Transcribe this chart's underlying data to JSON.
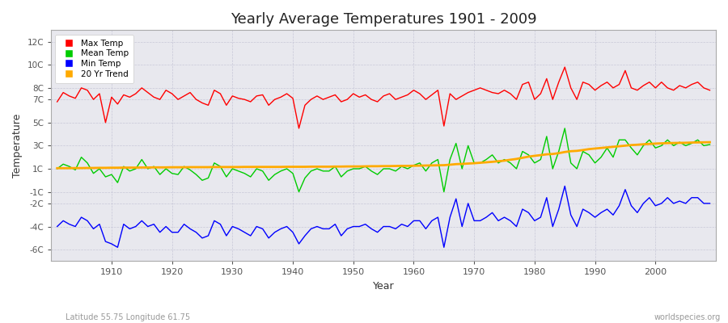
{
  "title": "Yearly Average Temperatures 1901 - 2009",
  "xlabel": "Year",
  "ylabel": "Temperature",
  "subtitle_left": "Latitude 55.75 Longitude 61.75",
  "subtitle_right": "worldspecies.org",
  "years_start": 1901,
  "years_end": 2009,
  "ytick_vals": [
    -6,
    -4,
    -2,
    -1,
    1,
    3,
    5,
    7,
    8,
    10,
    12
  ],
  "ytick_labels": [
    "-6C",
    "-4C",
    "-2C",
    "-1C",
    "1C",
    "3C",
    "5C",
    "7C",
    "8C",
    "10C",
    "12C"
  ],
  "ylim": [
    -7,
    13
  ],
  "xlim": [
    1900,
    2010
  ],
  "fig_bg": "#ffffff",
  "plot_bg": "#e8e8ee",
  "grid_color": "#c8c8d8",
  "legend_colors": [
    "#ff0000",
    "#00cc00",
    "#0000ff",
    "#ffaa00"
  ],
  "legend_labels": [
    "Max Temp",
    "Mean Temp",
    "Min Temp",
    "20 Yr Trend"
  ],
  "max_temp": [
    6.8,
    7.6,
    7.3,
    7.1,
    8.0,
    7.8,
    7.0,
    7.5,
    5.0,
    7.2,
    6.6,
    7.4,
    7.2,
    7.5,
    8.0,
    7.6,
    7.2,
    7.0,
    7.8,
    7.5,
    7.0,
    7.3,
    7.6,
    7.0,
    6.7,
    6.5,
    7.8,
    7.5,
    6.5,
    7.3,
    7.1,
    7.0,
    6.8,
    7.3,
    7.4,
    6.5,
    7.0,
    7.2,
    7.5,
    7.1,
    4.5,
    6.5,
    7.0,
    7.3,
    7.0,
    7.2,
    7.4,
    6.8,
    7.0,
    7.5,
    7.2,
    7.4,
    7.0,
    6.8,
    7.3,
    7.5,
    7.0,
    7.2,
    7.4,
    7.8,
    7.5,
    7.0,
    7.4,
    7.8,
    4.7,
    7.5,
    7.0,
    7.3,
    7.6,
    7.8,
    8.0,
    7.8,
    7.6,
    7.5,
    7.8,
    7.5,
    7.0,
    8.3,
    8.5,
    7.0,
    7.5,
    8.8,
    7.0,
    8.5,
    9.8,
    8.0,
    7.0,
    8.5,
    8.3,
    7.8,
    8.2,
    8.5,
    8.0,
    8.3,
    9.5,
    8.0,
    7.8,
    8.2,
    8.5,
    8.0,
    8.5,
    8.0,
    7.8,
    8.2,
    8.0,
    8.3,
    8.5,
    8.0,
    7.8
  ],
  "mean_temp": [
    1.0,
    1.4,
    1.2,
    0.9,
    2.0,
    1.5,
    0.6,
    1.0,
    0.3,
    0.5,
    -0.2,
    1.2,
    0.8,
    1.0,
    1.8,
    1.0,
    1.2,
    0.5,
    1.0,
    0.6,
    0.5,
    1.2,
    0.9,
    0.5,
    0.0,
    0.2,
    1.5,
    1.2,
    0.3,
    1.0,
    0.8,
    0.6,
    0.3,
    1.0,
    0.8,
    0.0,
    0.5,
    0.8,
    1.0,
    0.6,
    -1.0,
    0.2,
    0.8,
    1.0,
    0.8,
    0.8,
    1.2,
    0.3,
    0.8,
    1.0,
    1.0,
    1.2,
    0.8,
    0.5,
    1.0,
    1.0,
    0.8,
    1.2,
    1.0,
    1.3,
    1.5,
    0.8,
    1.5,
    1.8,
    -1.0,
    1.8,
    3.2,
    1.0,
    3.0,
    1.5,
    1.5,
    1.8,
    2.2,
    1.5,
    1.8,
    1.5,
    1.0,
    2.5,
    2.2,
    1.5,
    1.8,
    3.8,
    1.0,
    2.5,
    4.5,
    1.5,
    1.0,
    2.5,
    2.2,
    1.5,
    2.0,
    2.8,
    2.0,
    3.5,
    3.5,
    2.8,
    2.2,
    3.0,
    3.5,
    2.8,
    3.0,
    3.5,
    3.0,
    3.3,
    3.0,
    3.2,
    3.5,
    3.0,
    3.1
  ],
  "min_temp": [
    -4.0,
    -3.5,
    -3.8,
    -4.0,
    -3.2,
    -3.5,
    -4.2,
    -3.8,
    -5.3,
    -5.5,
    -5.8,
    -3.8,
    -4.2,
    -4.0,
    -3.5,
    -4.0,
    -3.8,
    -4.5,
    -4.0,
    -4.5,
    -4.5,
    -3.8,
    -4.2,
    -4.5,
    -5.0,
    -4.8,
    -3.5,
    -3.8,
    -4.8,
    -4.0,
    -4.2,
    -4.5,
    -4.8,
    -4.0,
    -4.2,
    -5.0,
    -4.5,
    -4.2,
    -4.0,
    -4.5,
    -5.5,
    -4.8,
    -4.2,
    -4.0,
    -4.2,
    -4.2,
    -3.8,
    -4.8,
    -4.2,
    -4.0,
    -4.0,
    -3.8,
    -4.2,
    -4.5,
    -4.0,
    -4.0,
    -4.2,
    -3.8,
    -4.0,
    -3.5,
    -3.5,
    -4.2,
    -3.5,
    -3.2,
    -5.8,
    -3.2,
    -1.6,
    -4.0,
    -2.0,
    -3.5,
    -3.5,
    -3.2,
    -2.8,
    -3.5,
    -3.2,
    -3.5,
    -4.0,
    -2.5,
    -2.8,
    -3.5,
    -3.2,
    -1.5,
    -4.0,
    -2.5,
    -0.5,
    -3.0,
    -4.0,
    -2.5,
    -2.8,
    -3.2,
    -2.8,
    -2.5,
    -3.0,
    -2.2,
    -0.8,
    -2.2,
    -2.8,
    -2.0,
    -1.5,
    -2.2,
    -2.0,
    -1.5,
    -2.0,
    -1.8,
    -2.0,
    -1.5,
    -1.5,
    -2.0,
    -2.0
  ],
  "trend_temp": [
    1.05,
    1.05,
    1.05,
    1.06,
    1.06,
    1.07,
    1.07,
    1.08,
    1.08,
    1.09,
    1.09,
    1.1,
    1.1,
    1.1,
    1.11,
    1.11,
    1.12,
    1.12,
    1.12,
    1.13,
    1.13,
    1.13,
    1.14,
    1.14,
    1.14,
    1.14,
    1.15,
    1.15,
    1.15,
    1.15,
    1.15,
    1.16,
    1.16,
    1.16,
    1.16,
    1.16,
    1.16,
    1.16,
    1.17,
    1.17,
    1.17,
    1.17,
    1.18,
    1.18,
    1.18,
    1.18,
    1.19,
    1.19,
    1.2,
    1.2,
    1.2,
    1.21,
    1.22,
    1.22,
    1.23,
    1.23,
    1.24,
    1.25,
    1.25,
    1.26,
    1.27,
    1.28,
    1.29,
    1.3,
    1.31,
    1.35,
    1.4,
    1.42,
    1.45,
    1.48,
    1.52,
    1.56,
    1.6,
    1.65,
    1.7,
    1.78,
    1.85,
    1.95,
    2.05,
    2.12,
    2.18,
    2.25,
    2.28,
    2.35,
    2.45,
    2.52,
    2.55,
    2.62,
    2.7,
    2.75,
    2.8,
    2.85,
    2.9,
    2.95,
    3.0,
    3.05,
    3.08,
    3.12,
    3.15,
    3.18,
    3.2,
    3.22,
    3.23,
    3.24,
    3.25,
    3.27,
    3.28,
    3.29,
    3.3
  ]
}
